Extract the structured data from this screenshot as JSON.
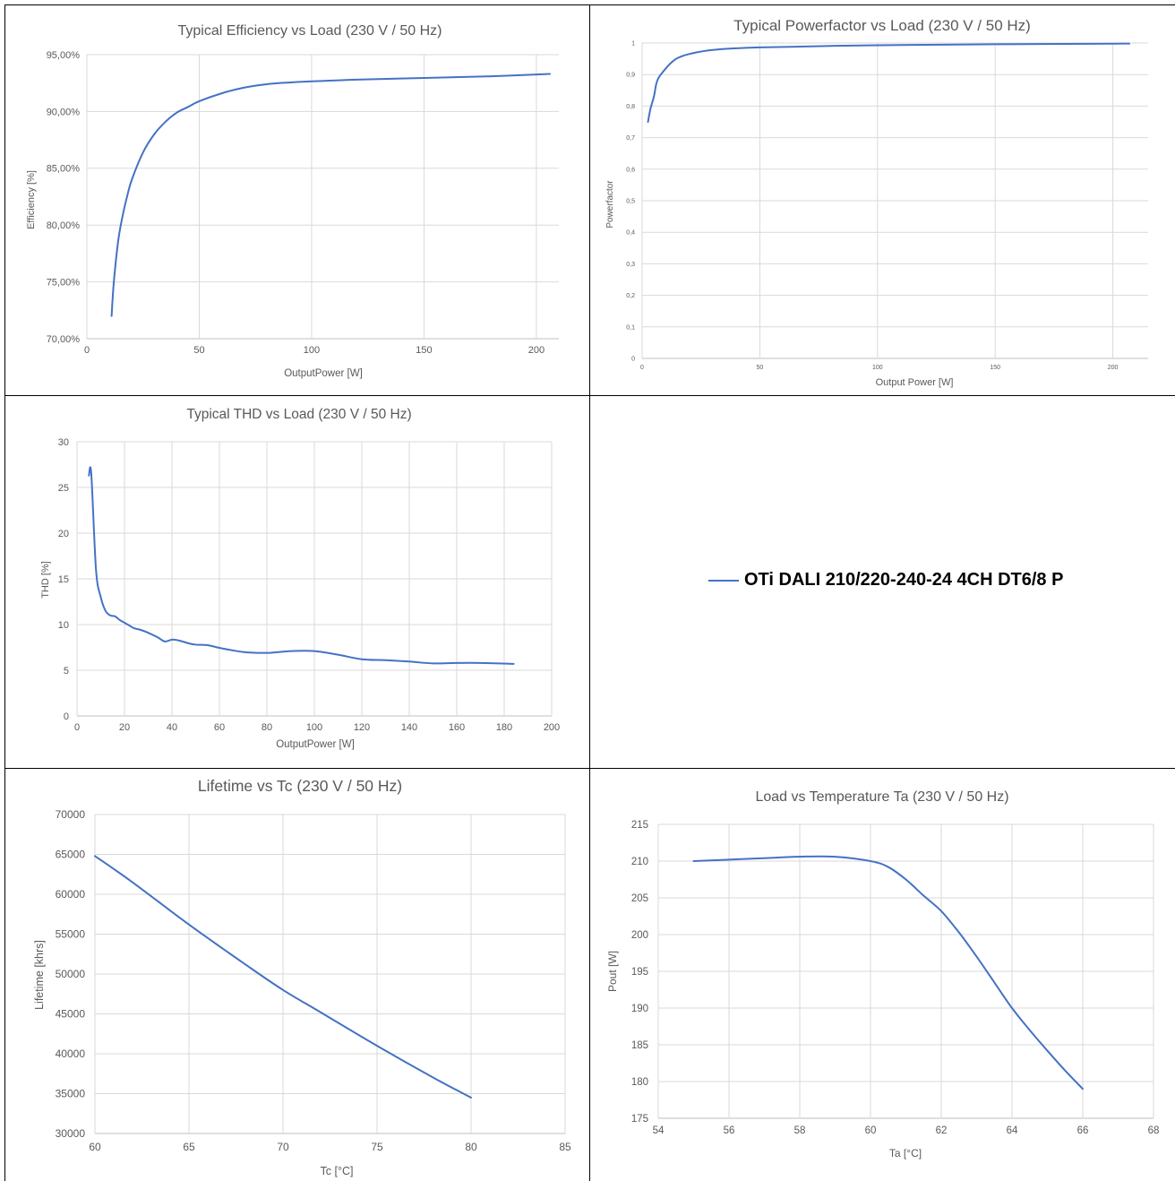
{
  "legend": {
    "label": "OTi DALI 210/220-240-24 4CH DT6/8 P",
    "color": "#4472C4"
  },
  "chart_data": [
    {
      "type": "line",
      "title": "Typical Efficiency vs Load (230 V / 50 Hz)",
      "xlabel": "OutputPower [W]",
      "ylabel": "Efficiency [%]",
      "xlim": [
        0,
        210
      ],
      "ylim": [
        70,
        95
      ],
      "xticks": [
        "0",
        "50",
        "100",
        "150",
        "200"
      ],
      "xtick_values": [
        0,
        50,
        100,
        150,
        200
      ],
      "yticks": [
        "70,00%",
        "75,00%",
        "80,00%",
        "85,00%",
        "90,00%",
        "95,00%"
      ],
      "ytick_values": [
        70,
        75,
        80,
        85,
        90,
        95
      ],
      "grid": true,
      "series": [
        {
          "color": "#4472C4",
          "x": [
            11,
            12,
            14,
            16,
            18,
            20,
            25,
            30,
            35,
            40,
            45,
            50,
            60,
            70,
            80,
            90,
            100,
            120,
            150,
            180,
            206
          ],
          "y": [
            72.0,
            75.0,
            78.7,
            80.9,
            82.6,
            84.0,
            86.4,
            88.0,
            89.1,
            89.9,
            90.4,
            90.9,
            91.6,
            92.1,
            92.4,
            92.55,
            92.65,
            92.8,
            92.95,
            93.1,
            93.3
          ]
        }
      ]
    },
    {
      "type": "line",
      "title": "Typical Powerfactor vs Load (230 V / 50 Hz)",
      "xlabel": "Output Power [W]",
      "ylabel": "Powerfactor",
      "xlim": [
        0,
        215
      ],
      "ylim": [
        0,
        1
      ],
      "xticks": [
        "0",
        "50",
        "100",
        "150",
        "200"
      ],
      "xtick_values": [
        0,
        50,
        100,
        150,
        200
      ],
      "yticks": [
        "0",
        "0,1",
        "0,2",
        "0,3",
        "0,4",
        "0,5",
        "0,6",
        "0,7",
        "0,8",
        "0,9",
        "1"
      ],
      "ytick_values": [
        0,
        0.1,
        0.2,
        0.3,
        0.4,
        0.5,
        0.6,
        0.7,
        0.8,
        0.9,
        1
      ],
      "grid": true,
      "series": [
        {
          "color": "#4472C4",
          "x": [
            2.5,
            3.5,
            5,
            6,
            7,
            9,
            12,
            15,
            20,
            30,
            50,
            100,
            150,
            200,
            207
          ],
          "y": [
            0.75,
            0.79,
            0.83,
            0.87,
            0.89,
            0.91,
            0.935,
            0.952,
            0.965,
            0.978,
            0.986,
            0.993,
            0.996,
            0.998,
            0.998
          ]
        }
      ]
    },
    {
      "type": "line",
      "title": "Typical THD vs Load (230 V / 50 Hz)",
      "xlabel": "OutputPower [W]",
      "ylabel": "THD [%]",
      "xlim": [
        0,
        200
      ],
      "ylim": [
        0,
        30
      ],
      "xticks": [
        "0",
        "20",
        "40",
        "60",
        "80",
        "100",
        "120",
        "140",
        "160",
        "180",
        "200"
      ],
      "xtick_values": [
        0,
        20,
        40,
        60,
        80,
        100,
        120,
        140,
        160,
        180,
        200
      ],
      "yticks": [
        "0",
        "5",
        "10",
        "15",
        "20",
        "25",
        "30"
      ],
      "ytick_values": [
        0,
        5,
        10,
        15,
        20,
        25,
        30
      ],
      "grid": true,
      "series": [
        {
          "color": "#4472C4",
          "x": [
            5,
            6,
            8,
            10,
            12,
            14,
            16,
            18,
            20,
            22,
            24,
            27,
            30,
            34,
            37,
            40,
            43,
            47,
            50,
            55,
            60,
            70,
            80,
            90,
            100,
            110,
            120,
            130,
            140,
            150,
            160,
            170,
            184
          ],
          "y": [
            26.3,
            26.5,
            16.0,
            13.0,
            11.5,
            11.0,
            10.9,
            10.5,
            10.2,
            9.9,
            9.6,
            9.4,
            9.1,
            8.6,
            8.15,
            8.35,
            8.25,
            7.95,
            7.8,
            7.75,
            7.45,
            7.0,
            6.9,
            7.1,
            7.1,
            6.7,
            6.2,
            6.1,
            5.95,
            5.75,
            5.8,
            5.8,
            5.7
          ]
        }
      ]
    },
    {
      "type": "line",
      "title": "Lifetime vs Tc (230 V / 50 Hz)",
      "xlabel": "Tc [°C]",
      "ylabel": "Lifetime [khrs]",
      "xlim": [
        60,
        85
      ],
      "ylim": [
        30000,
        70000
      ],
      "xticks": [
        "60",
        "65",
        "70",
        "75",
        "80",
        "85"
      ],
      "xtick_values": [
        60,
        65,
        70,
        75,
        80,
        85
      ],
      "yticks": [
        "30000",
        "35000",
        "40000",
        "45000",
        "50000",
        "55000",
        "60000",
        "65000",
        "70000"
      ],
      "ytick_values": [
        30000,
        35000,
        40000,
        45000,
        50000,
        55000,
        60000,
        65000,
        70000
      ],
      "grid": true,
      "series": [
        {
          "color": "#4472C4",
          "x": [
            60,
            62,
            65,
            68,
            70,
            72,
            75,
            78,
            80
          ],
          "y": [
            64800,
            61500,
            56200,
            51200,
            48000,
            45200,
            41000,
            37000,
            34500
          ]
        }
      ]
    },
    {
      "type": "line",
      "title": "Load vs Temperature Ta (230 V / 50 Hz)",
      "xlabel": "Ta [°C]",
      "ylabel": "Pout  [W]",
      "xlim": [
        54,
        68
      ],
      "ylim": [
        175,
        215
      ],
      "xticks": [
        "54",
        "56",
        "58",
        "60",
        "62",
        "64",
        "66",
        "68"
      ],
      "xtick_values": [
        54,
        56,
        58,
        60,
        62,
        64,
        66,
        68
      ],
      "yticks": [
        "175",
        "180",
        "185",
        "190",
        "195",
        "200",
        "205",
        "210",
        "215"
      ],
      "ytick_values": [
        175,
        180,
        185,
        190,
        195,
        200,
        205,
        210,
        215
      ],
      "grid": true,
      "series": [
        {
          "color": "#4472C4",
          "x": [
            55,
            56,
            57,
            58,
            59,
            60,
            60.5,
            61,
            61.5,
            62,
            62.5,
            63,
            63.5,
            64,
            64.5,
            65,
            65.5,
            66
          ],
          "y": [
            210,
            210.2,
            210.4,
            210.6,
            210.6,
            210.0,
            209.2,
            207.5,
            205.3,
            203.2,
            200.3,
            197.0,
            193.5,
            190.0,
            187.0,
            184.2,
            181.5,
            179.0
          ]
        }
      ]
    }
  ]
}
